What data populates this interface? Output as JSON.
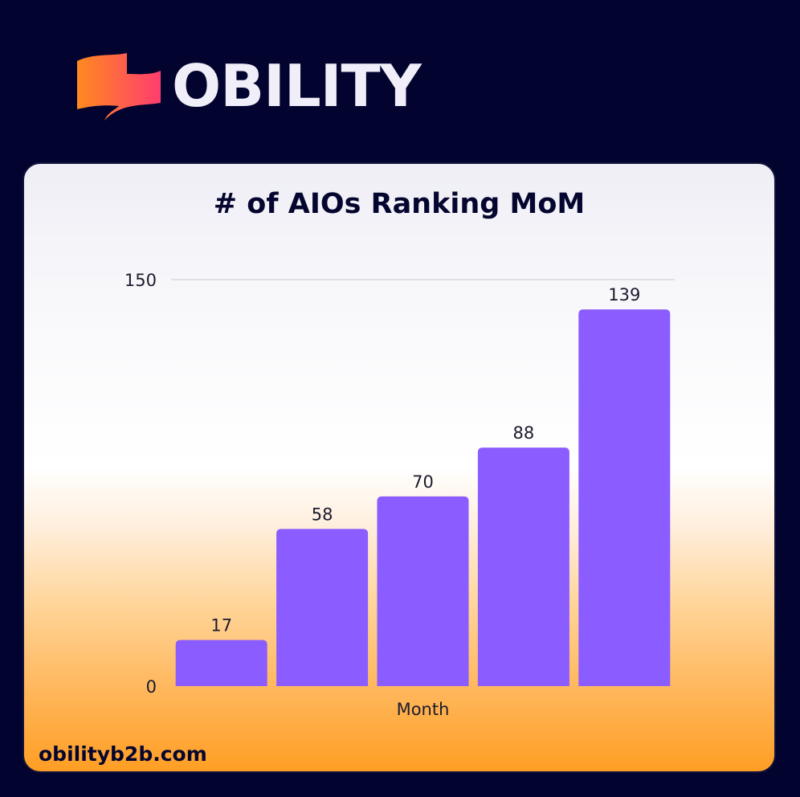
{
  "brand": {
    "name": "OBILITY",
    "website": "obilityb2b.com",
    "logo_icon": "obility-flag-icon"
  },
  "colors": {
    "background": "#02032e",
    "bar": "#8b5cff",
    "logo_gradient_start": "#ff8a1f",
    "logo_gradient_end": "#ff3d6e"
  },
  "chart_data": {
    "type": "bar",
    "title": "# of AIOs Ranking MoM",
    "xlabel": "Month",
    "ylabel": "",
    "categories": [
      "",
      "",
      "",
      "",
      ""
    ],
    "values": [
      17,
      58,
      70,
      88,
      139
    ],
    "ylim": [
      0,
      150
    ],
    "yticks": [
      "0",
      "150"
    ],
    "grid": true,
    "data_labels": true
  }
}
